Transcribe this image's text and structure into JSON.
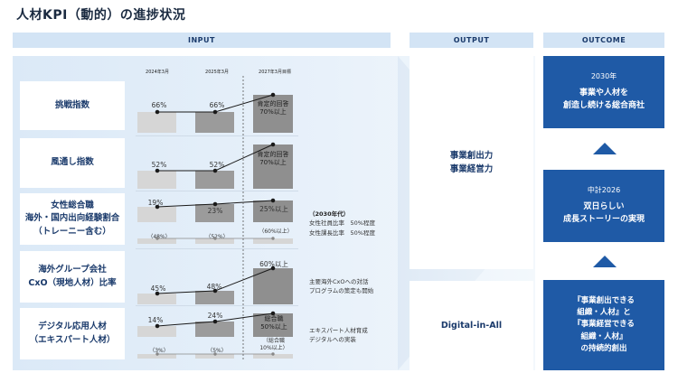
{
  "title": "人材KPI（動的）の進捗状況",
  "headers": {
    "input": "INPUT",
    "output": "OUTPUT",
    "outcome": "OUTCOME"
  },
  "years": [
    "2024年3月",
    "2025年3月",
    "2027年3月目標"
  ],
  "rows": [
    {
      "label": "挑戦指数",
      "v2024": "66%",
      "v2025": "66%",
      "target": "肯定的回答\n70%以上"
    },
    {
      "label": "風通し指数",
      "v2024": "52%",
      "v2025": "52%",
      "target": "肯定的回答\n70%以上"
    },
    {
      "label": "女性総合職\n海外・国内出向経験割合\n（トレーニー含む）",
      "v2024": "19%",
      "v2025": "23%",
      "target": "25%以上",
      "sub2024": "（48%）",
      "sub2025": "（52%）",
      "subTarget": "（60%以上）",
      "note_head": "（2030年代）",
      "note": "女性社員比率　50%程度\n女性課長比率　50%程度"
    },
    {
      "label": "海外グループ会社\nCxO（現地人材）比率",
      "v2024": "45%",
      "v2025": "48%",
      "target": "60%以上",
      "note": "主要海外CxOへの対話\nプログラムの策定も開始"
    },
    {
      "label": "デジタル応用人材\n（エキスパート人材）",
      "v2024": "14%",
      "v2025": "24%",
      "target": "総合職\n50%以上",
      "sub2024": "（3%）",
      "sub2025": "（5%）",
      "subTarget": "（総合職\n10%以上）",
      "note": "エキスパート人材育成\nデジタルへの実装"
    }
  ],
  "output": {
    "main": "事業創出力\n事業経営力",
    "digital": "Digital-in-All"
  },
  "outcome": [
    {
      "sub": "2030年",
      "main": "事業や人材を\n創造し続ける総合商社"
    },
    {
      "sub": "中計2026",
      "main": "双日らしい\n成長ストーリーの実現"
    },
    {
      "sub": "",
      "main": "『事業創出できる\n組織・人材』と\n『事業経営できる\n組織・人材』\nの持続的創出"
    }
  ],
  "colors": {
    "outcome_blue": "#1f5aa6",
    "header_blue": "#d3e4f5",
    "text_navy": "#1a3a6b"
  }
}
